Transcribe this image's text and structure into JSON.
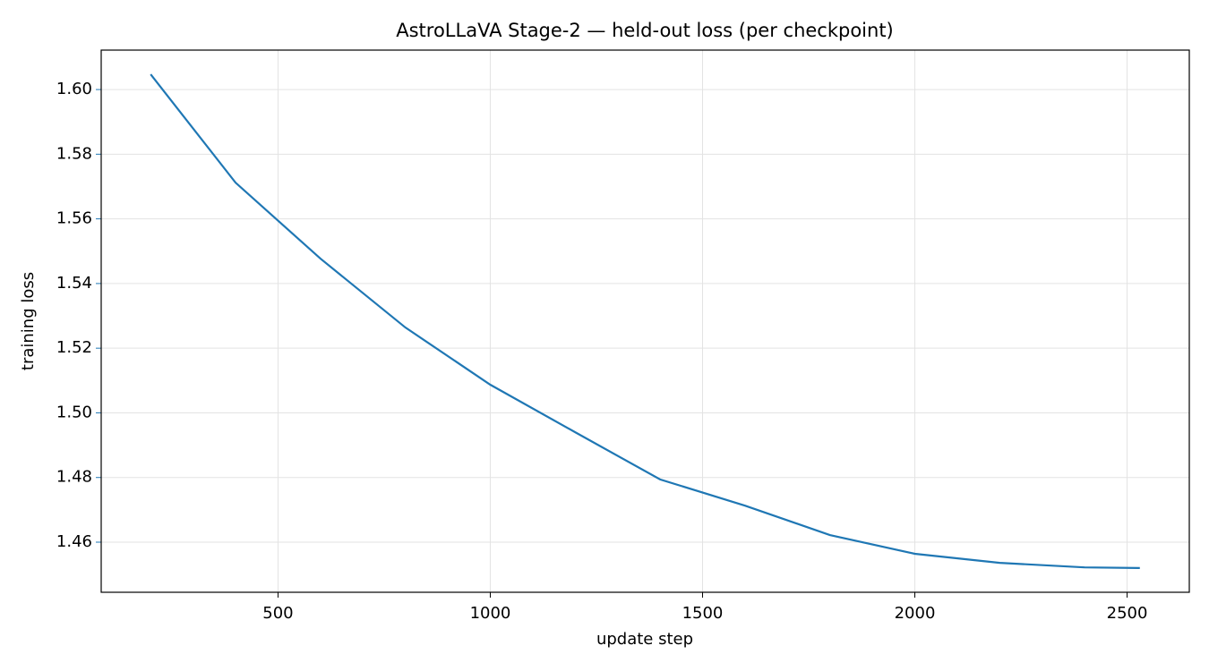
{
  "chart_data": {
    "type": "line",
    "title": "AstroLLaVA Stage-2 — held-out loss (per checkpoint)",
    "x_label": "update step",
    "y_label": "training loss",
    "x": [
      200,
      400,
      600,
      800,
      1000,
      1200,
      1400,
      1600,
      1800,
      2000,
      2200,
      2400,
      2530
    ],
    "series": [
      {
        "name": "training loss",
        "color": "#1f77b4",
        "values": [
          1.6047,
          1.5712,
          1.5477,
          1.5264,
          1.5087,
          1.494,
          1.4794,
          1.4713,
          1.4622,
          1.4564,
          1.4536,
          1.4522,
          1.452
        ]
      }
    ],
    "xlim": [
      83.5,
      2646.5
    ],
    "xticks": [
      500,
      1000,
      1500,
      2000,
      2500
    ],
    "ylim": [
      1.4445,
      1.6122
    ],
    "yticks": [
      {
        "value": 1.46,
        "label": "1.46"
      },
      {
        "value": 1.48,
        "label": "1.48"
      },
      {
        "value": 1.5,
        "label": "1.50"
      },
      {
        "value": 1.52,
        "label": "1.52"
      },
      {
        "value": 1.54,
        "label": "1.54"
      },
      {
        "value": 1.56,
        "label": "1.56"
      },
      {
        "value": 1.58,
        "label": "1.58"
      },
      {
        "value": 1.6,
        "label": "1.60"
      }
    ],
    "grid": true,
    "y_axis_color": "#1f77b4"
  }
}
